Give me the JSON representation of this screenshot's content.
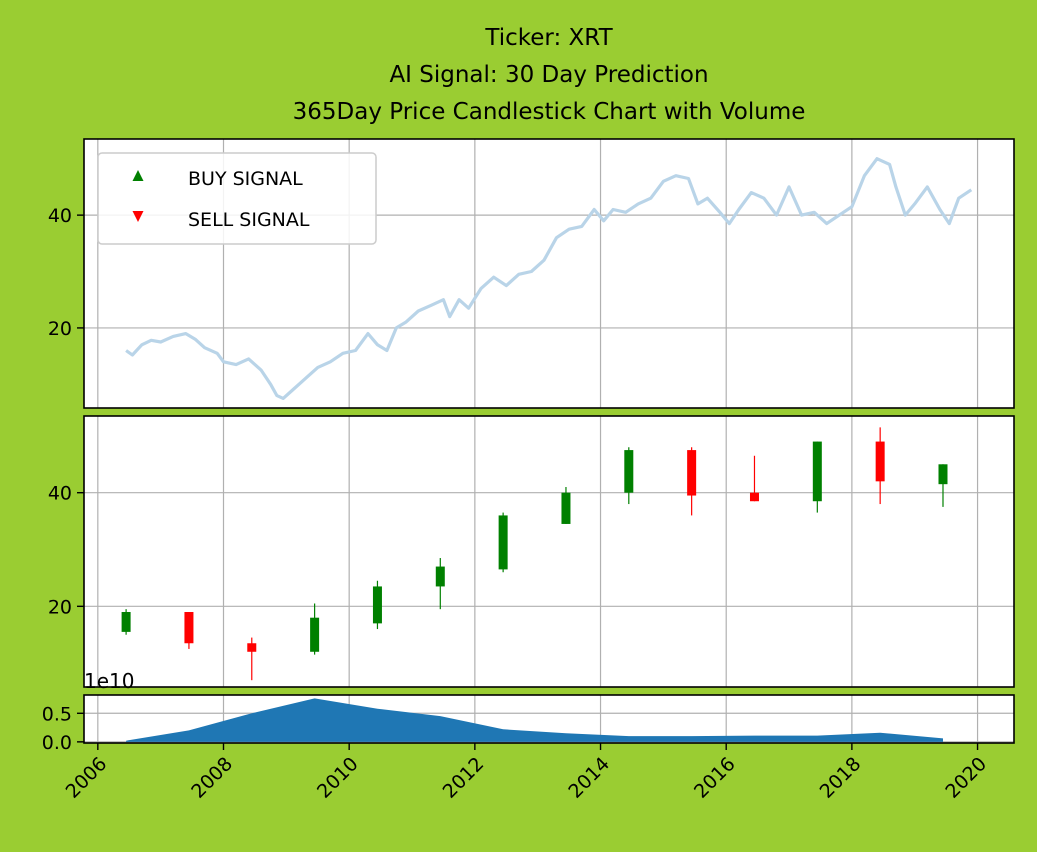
{
  "page": {
    "background": "#9acd32"
  },
  "chart_data": [
    {
      "panel": "price",
      "type": "line",
      "title_lines": [
        "Ticker: XRT",
        "AI Signal: 30 Day Prediction",
        "365Day Price Candlestick Chart with Volume"
      ],
      "xlabel": "",
      "ylabel": "",
      "xlim": [
        2005.78,
        2020.58
      ],
      "ylim": [
        5.8,
        53.5
      ],
      "yticks": [
        20,
        40
      ],
      "grid": true,
      "series_color": "#b9d4e8",
      "legend": {
        "placement": "top-left",
        "entries": [
          {
            "label": "BUY SIGNAL",
            "marker": "triangle-up",
            "color": "#008000"
          },
          {
            "label": "SELL SIGNAL",
            "marker": "triangle-down",
            "color": "#ff0000"
          }
        ]
      },
      "x": [
        2006.45,
        2006.55,
        2006.7,
        2006.85,
        2007.0,
        2007.2,
        2007.4,
        2007.55,
        2007.7,
        2007.9,
        2008.0,
        2008.2,
        2008.4,
        2008.6,
        2008.75,
        2008.85,
        2008.95,
        2009.1,
        2009.3,
        2009.5,
        2009.7,
        2009.9,
        2010.1,
        2010.3,
        2010.45,
        2010.6,
        2010.75,
        2010.9,
        2011.1,
        2011.3,
        2011.5,
        2011.6,
        2011.75,
        2011.9,
        2012.1,
        2012.3,
        2012.5,
        2012.7,
        2012.9,
        2013.1,
        2013.3,
        2013.5,
        2013.7,
        2013.9,
        2014.05,
        2014.2,
        2014.4,
        2014.6,
        2014.8,
        2015.0,
        2015.2,
        2015.4,
        2015.55,
        2015.7,
        2015.9,
        2016.05,
        2016.2,
        2016.4,
        2016.6,
        2016.8,
        2017.0,
        2017.2,
        2017.4,
        2017.6,
        2017.8,
        2018.0,
        2018.2,
        2018.4,
        2018.6,
        2018.7,
        2018.85,
        2019.0,
        2019.2,
        2019.4,
        2019.55,
        2019.7,
        2019.9
      ],
      "y": [
        16.0,
        15.2,
        17.0,
        17.8,
        17.5,
        18.5,
        19.0,
        18.0,
        16.5,
        15.5,
        14.0,
        13.5,
        14.5,
        12.5,
        10.0,
        8.0,
        7.5,
        9.0,
        11.0,
        13.0,
        14.0,
        15.5,
        16.0,
        19.0,
        17.0,
        16.0,
        20.0,
        21.0,
        23.0,
        24.0,
        25.0,
        22.0,
        25.0,
        23.5,
        27.0,
        29.0,
        27.5,
        29.5,
        30.0,
        32.0,
        36.0,
        37.5,
        38.0,
        41.0,
        39.0,
        41.0,
        40.5,
        42.0,
        43.0,
        46.0,
        47.0,
        46.5,
        42.0,
        43.0,
        40.5,
        38.5,
        41.0,
        44.0,
        43.0,
        40.0,
        45.0,
        40.0,
        40.5,
        38.5,
        40.0,
        41.5,
        47.0,
        50.0,
        49.0,
        45.0,
        40.0,
        42.0,
        45.0,
        41.0,
        38.5,
        43.0,
        44.5
      ]
    },
    {
      "panel": "candles",
      "type": "candlestick",
      "xlim": [
        2005.78,
        2020.58
      ],
      "ylim": [
        5.8,
        53.5
      ],
      "yticks": [
        20,
        40
      ],
      "grid": true,
      "up_color": "#008000",
      "down_color": "#ff0000",
      "candles": [
        {
          "x": 2006.45,
          "open": 15.5,
          "close": 19.0,
          "high": 19.5,
          "low": 15.0
        },
        {
          "x": 2007.45,
          "open": 19.0,
          "close": 13.5,
          "high": 19.0,
          "low": 12.5
        },
        {
          "x": 2008.45,
          "open": 13.5,
          "close": 12.0,
          "high": 14.5,
          "low": 7.0
        },
        {
          "x": 2009.45,
          "open": 12.0,
          "close": 18.0,
          "high": 20.5,
          "low": 11.5
        },
        {
          "x": 2010.45,
          "open": 17.0,
          "close": 23.5,
          "high": 24.5,
          "low": 16.0
        },
        {
          "x": 2011.45,
          "open": 23.5,
          "close": 27.0,
          "high": 28.5,
          "low": 19.5
        },
        {
          "x": 2012.45,
          "open": 26.5,
          "close": 36.0,
          "high": 36.5,
          "low": 26.0
        },
        {
          "x": 2013.45,
          "open": 34.5,
          "close": 40.0,
          "high": 41.0,
          "low": 34.5
        },
        {
          "x": 2014.45,
          "open": 40.0,
          "close": 47.5,
          "high": 48.0,
          "low": 38.0
        },
        {
          "x": 2015.45,
          "open": 47.5,
          "close": 39.5,
          "high": 48.0,
          "low": 36.0
        },
        {
          "x": 2016.45,
          "open": 40.0,
          "close": 38.5,
          "high": 46.5,
          "low": 38.5
        },
        {
          "x": 2017.45,
          "open": 38.5,
          "close": 49.0,
          "high": 49.0,
          "low": 36.5
        },
        {
          "x": 2018.45,
          "open": 49.0,
          "close": 42.0,
          "high": 51.5,
          "low": 38.0
        },
        {
          "x": 2019.45,
          "open": 41.5,
          "close": 45.0,
          "high": 45.0,
          "low": 37.5
        }
      ]
    },
    {
      "panel": "volume",
      "type": "area",
      "offset_label": "1e10",
      "xlim": [
        2005.78,
        2020.58
      ],
      "ylim": [
        -0.02,
        0.82
      ],
      "yticks": [
        0.0,
        0.5
      ],
      "ytick_labels": [
        "0.0",
        "0.5"
      ],
      "xticks": [
        2006,
        2008,
        2010,
        2012,
        2014,
        2016,
        2018,
        2020
      ],
      "xtick_labels": [
        "2006",
        "2008",
        "2010",
        "2012",
        "2014",
        "2016",
        "2018",
        "2020"
      ],
      "grid": true,
      "color": "#1f77b4",
      "x": [
        2006.45,
        2007.45,
        2008.45,
        2009.45,
        2010.45,
        2011.45,
        2012.45,
        2013.45,
        2014.45,
        2015.45,
        2016.45,
        2017.45,
        2018.45,
        2019.45
      ],
      "values": [
        0.02,
        0.2,
        0.5,
        0.76,
        0.58,
        0.45,
        0.22,
        0.15,
        0.1,
        0.1,
        0.11,
        0.11,
        0.16,
        0.06
      ]
    }
  ]
}
